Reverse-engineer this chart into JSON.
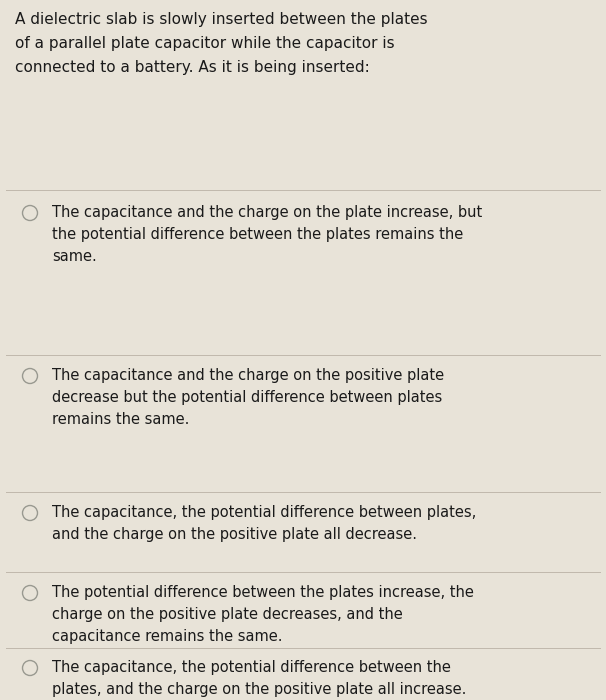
{
  "background_color": "#e8e3d8",
  "question_text": "A dielectric slab is slowly inserted between the plates\nof a parallel plate capacitor while the capacitor is\nconnected to a battery. As it is being inserted:",
  "options": [
    "The capacitance and the charge on the plate increase, but\nthe potential difference between the plates remains the\nsame.",
    "The capacitance and the charge on the positive plate\ndecrease but the potential difference between plates\nremains the same.",
    "The capacitance, the potential difference between plates,\nand the charge on the positive plate all decrease.",
    "The potential difference between the plates increase, the\ncharge on the positive plate decreases, and the\ncapacitance remains the same.",
    "The capacitance, the potential difference between the\nplates, and the charge on the positive plate all increase."
  ],
  "text_color": "#1a1a1a",
  "divider_color": "#c0b8ac",
  "circle_color": "#999990",
  "question_fontsize": 11.0,
  "option_fontsize": 10.5,
  "fig_width": 6.06,
  "fig_height": 7.0
}
